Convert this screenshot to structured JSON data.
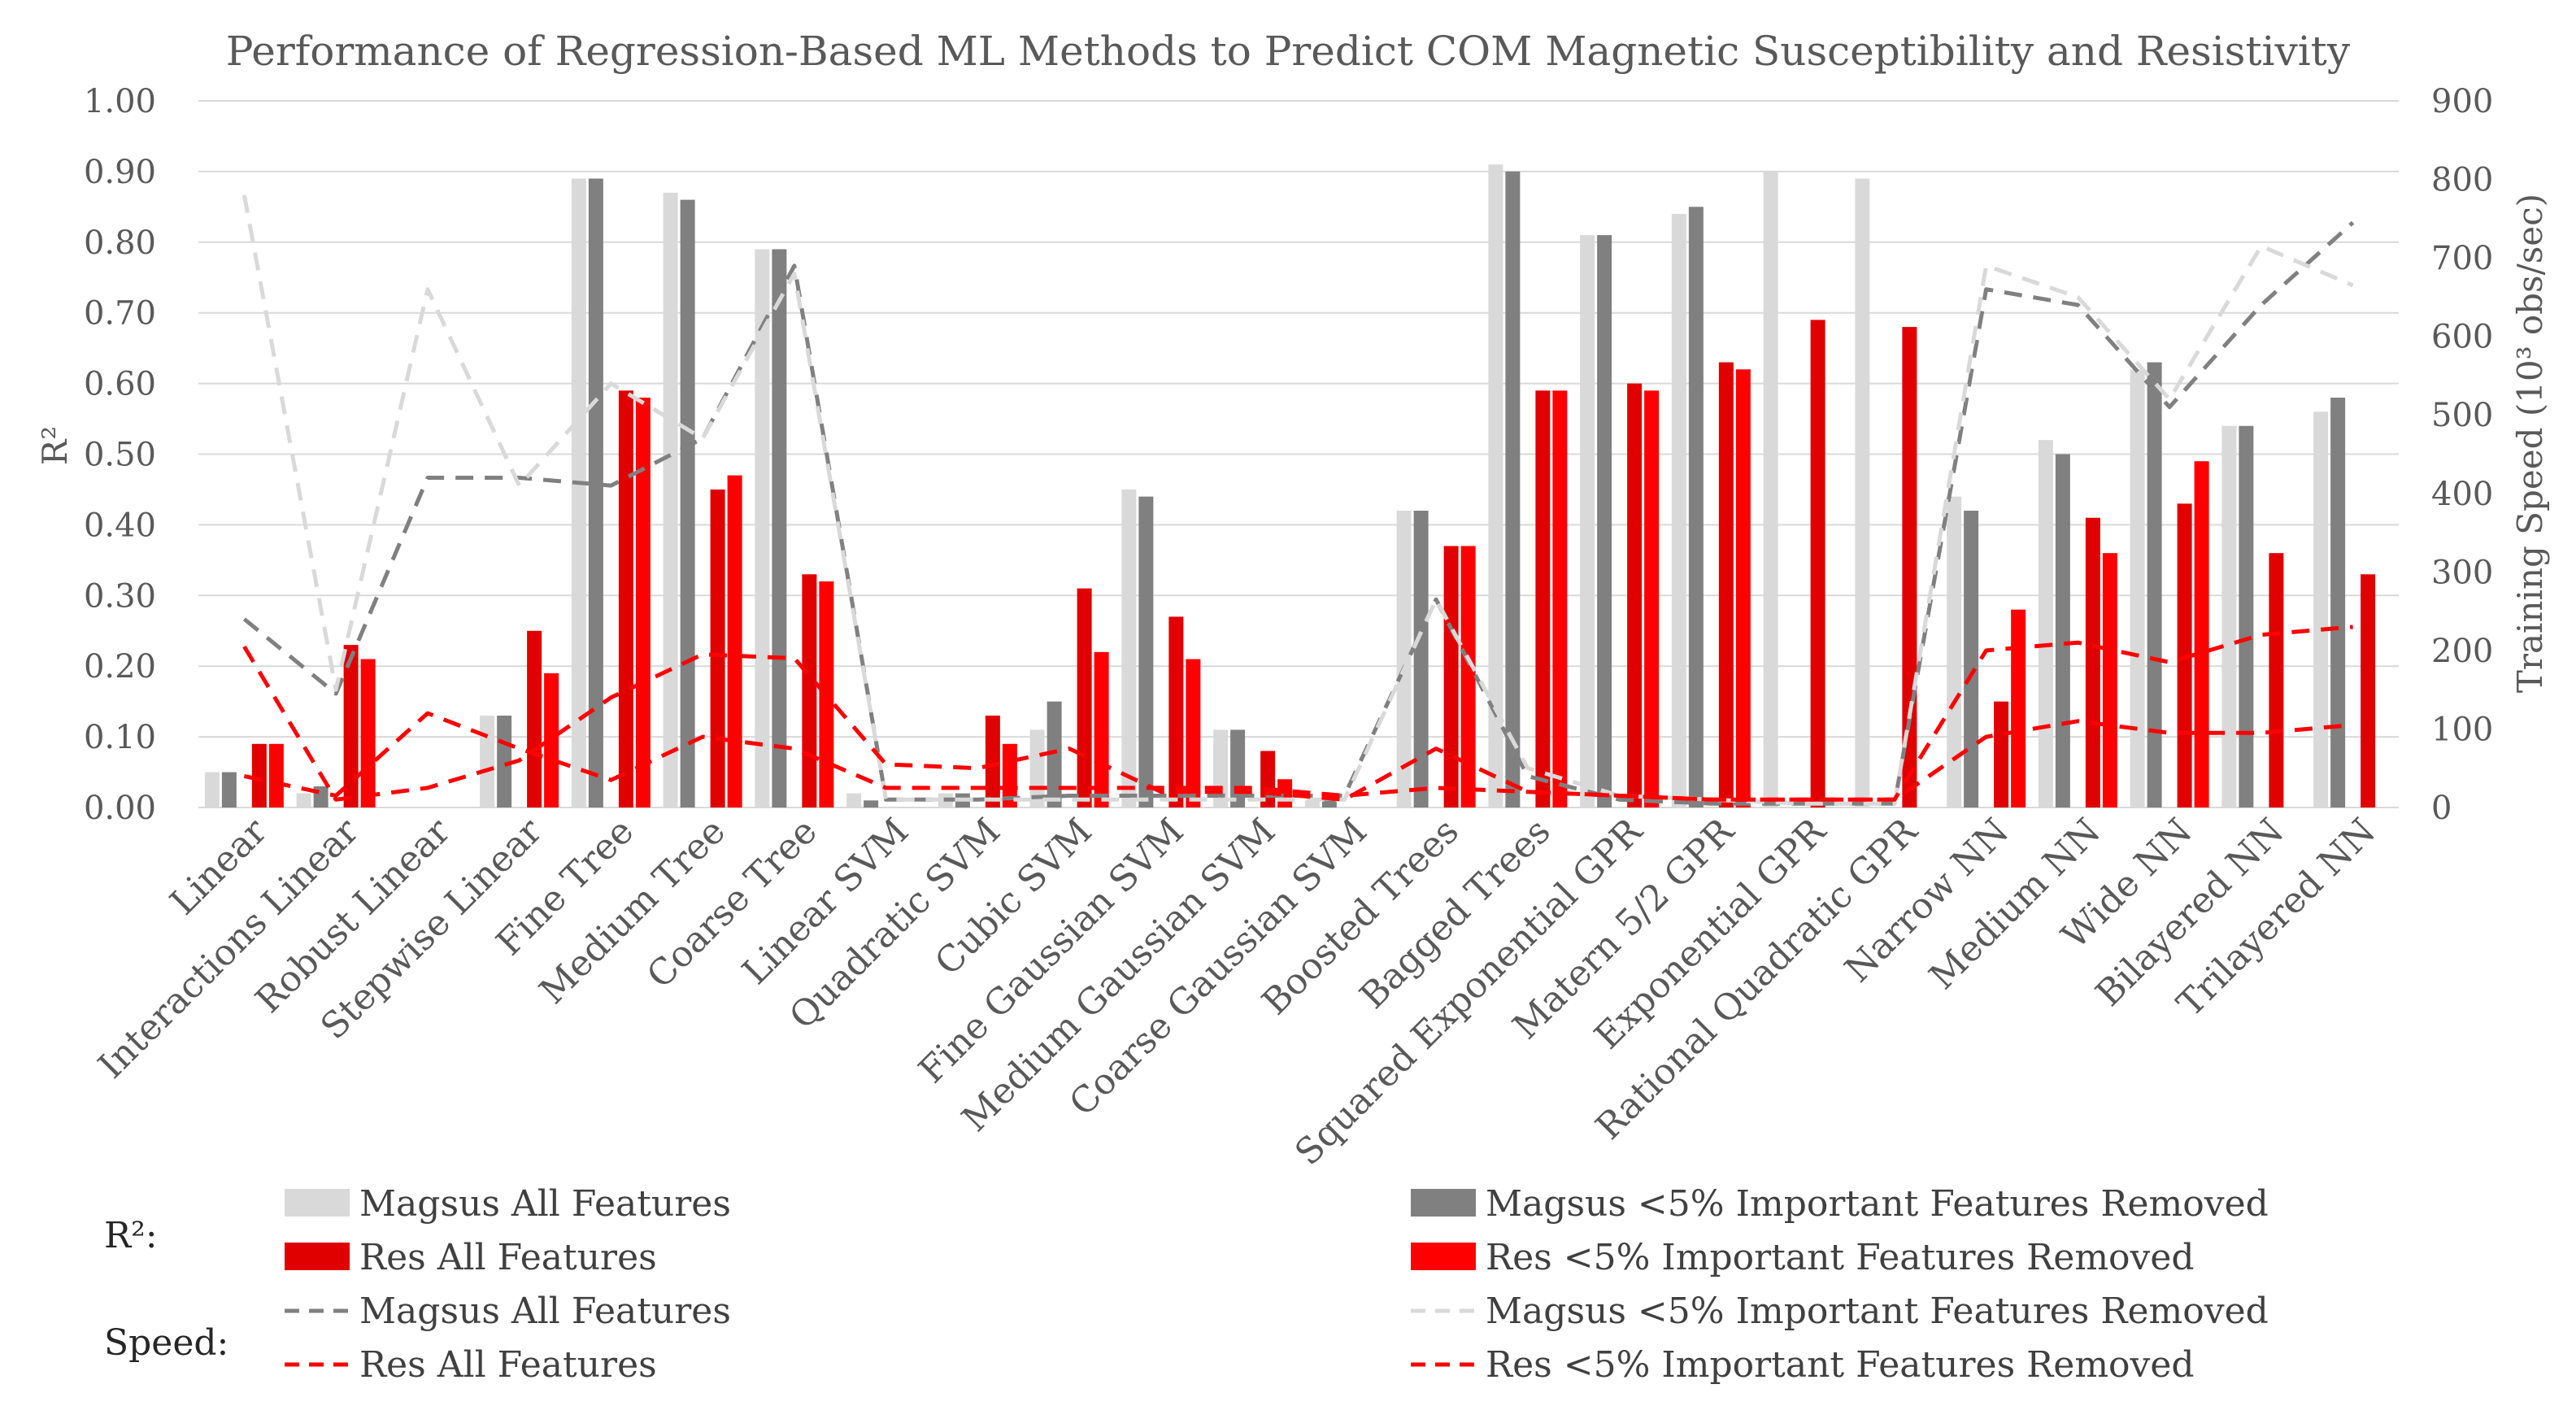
{
  "chart_data": {
    "type": "bar",
    "title": "Performance of Regression-Based ML Methods to Predict COM Magnetic Susceptibility and Resistivity",
    "ylabel_left": "R²",
    "ylabel_right": "Training Speed (10³ obs/sec)",
    "ylim_left": [
      0,
      1.0
    ],
    "ylim_right": [
      0,
      900
    ],
    "left_ticks": [
      "0.00",
      "0.10",
      "0.20",
      "0.30",
      "0.40",
      "0.50",
      "0.60",
      "0.70",
      "0.80",
      "0.90",
      "1.00"
    ],
    "right_ticks": [
      "0",
      "100",
      "200",
      "300",
      "400",
      "500",
      "600",
      "700",
      "800",
      "900"
    ],
    "grid": true,
    "legend_position": "bottom",
    "legend_groups": {
      "r2": "R²:",
      "speed": "Speed:"
    },
    "categories": [
      "Linear",
      "Interactions Linear",
      "Robust Linear",
      "Stepwise Linear",
      "Fine Tree",
      "Medium Tree",
      "Coarse Tree",
      "Linear SVM",
      "Quadratic SVM",
      "Cubic SVM",
      "Fine Gaussian SVM",
      "Medium Gaussian SVM",
      "Coarse Gaussian SVM",
      "Boosted Trees",
      "Bagged Trees",
      "Squared Exponential GPR",
      "Matern 5/2 GPR",
      "Exponential GPR",
      "Rational Quadratic GPR",
      "Narrow NN",
      "Medium NN",
      "Wide NN",
      "Bilayered NN",
      "Trilayered NN"
    ],
    "bar_series": [
      {
        "name": "Magsus All Features",
        "color": "#d9d9d9",
        "values": [
          0.05,
          0.02,
          0,
          0.13,
          0.89,
          0.87,
          0.79,
          0.02,
          0.02,
          0.11,
          0.45,
          0.11,
          0.01,
          0.42,
          0.91,
          0.81,
          0.84,
          0.9,
          0.89,
          0.44,
          0.52,
          0.62,
          0.54,
          0.56
        ]
      },
      {
        "name": "Magsus <5% Important Features Removed",
        "color": "#808080",
        "values": [
          0.05,
          0.03,
          0,
          0.13,
          0.89,
          0.86,
          0.79,
          0.01,
          0.02,
          0.15,
          0.44,
          0.11,
          0.01,
          0.42,
          0.9,
          0.81,
          0.85,
          0,
          0,
          0.42,
          0.5,
          0.63,
          0.54,
          0.58
        ]
      },
      {
        "name": "Res All Features",
        "color": "#e00000",
        "values": [
          0.09,
          0.23,
          0,
          0.25,
          0.59,
          0.45,
          0.33,
          0,
          0.13,
          0.31,
          0.27,
          0.08,
          0,
          0.37,
          0.59,
          0.6,
          0.63,
          0.69,
          0.68,
          0.15,
          0.41,
          0.43,
          0.36,
          0.33
        ]
      },
      {
        "name": "Res <5% Important Features Removed",
        "color": "#ff0000",
        "values": [
          0.09,
          0.21,
          0,
          0.19,
          0.58,
          0.47,
          0.32,
          0,
          0.09,
          0.22,
          0.21,
          0.04,
          0,
          0.37,
          0.59,
          0.59,
          0.62,
          0,
          0,
          0.28,
          0.36,
          0.49,
          0,
          0
        ]
      }
    ],
    "line_series": [
      {
        "name": "Magsus All Features",
        "color": "#808080",
        "values": [
          240,
          145,
          420,
          420,
          410,
          470,
          690,
          10,
          10,
          15,
          15,
          15,
          15,
          265,
          40,
          10,
          5,
          5,
          5,
          660,
          640,
          510,
          640,
          745
        ]
      },
      {
        "name": "Magsus <5% Important Features Removed",
        "color": "#d9d9d9",
        "values": [
          780,
          150,
          660,
          410,
          540,
          470,
          680,
          10,
          10,
          10,
          10,
          10,
          10,
          265,
          50,
          15,
          10,
          5,
          5,
          690,
          650,
          520,
          715,
          665
        ]
      },
      {
        "name": "Res All Features",
        "color": "#ff0000",
        "values": [
          205,
          10,
          25,
          60,
          140,
          195,
          190,
          55,
          50,
          75,
          20,
          20,
          10,
          75,
          20,
          15,
          10,
          10,
          10,
          200,
          210,
          185,
          220,
          230
        ]
      },
      {
        "name": "Res <5% Important Features Removed",
        "color": "#ff0000",
        "values": [
          40,
          15,
          120,
          75,
          35,
          90,
          75,
          25,
          25,
          25,
          25,
          25,
          15,
          25,
          20,
          15,
          10,
          10,
          10,
          90,
          110,
          95,
          95,
          105
        ]
      }
    ]
  }
}
